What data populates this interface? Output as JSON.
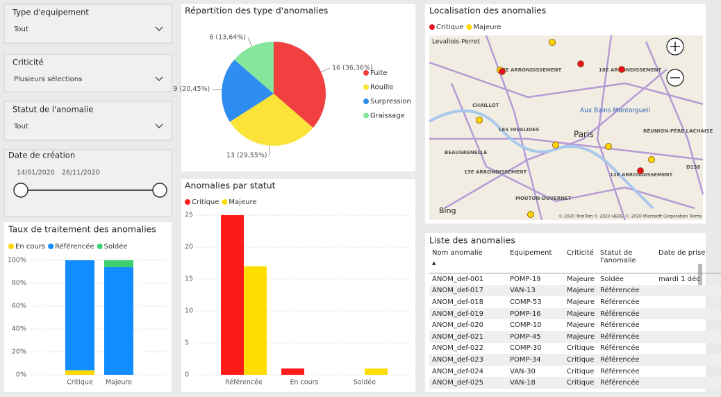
{
  "filters": [
    {
      "title": "Type d'equipement",
      "value": "Tout"
    },
    {
      "title": "Criticité",
      "value": "Plusieurs sélections"
    },
    {
      "title": "Statut de l'anomalie",
      "value": "Tout"
    }
  ],
  "date_filter": {
    "title": "Date de création",
    "start": "14/01/2020",
    "end": "26/11/2020"
  },
  "chart_data": [
    {
      "type": "bar",
      "stacked": true,
      "title": "Taux de traitement des anomalies",
      "categories": [
        "Critique",
        "Majeure"
      ],
      "series": [
        {
          "name": "En cours",
          "color": "#ffd700",
          "values": [
            4,
            0
          ]
        },
        {
          "name": "Référencée",
          "color": "#118dff",
          "values": [
            96,
            94
          ]
        },
        {
          "name": "Soldée",
          "color": "#3bd16f",
          "values": [
            0,
            6
          ]
        }
      ],
      "ylim": [
        0,
        100
      ],
      "yticks": [
        {
          "value": 0,
          "label": "0%"
        },
        {
          "value": 20,
          "label": "20%"
        },
        {
          "value": 40,
          "label": "40%"
        },
        {
          "value": 60,
          "label": "60%"
        },
        {
          "value": 80,
          "label": "80%"
        },
        {
          "value": 100,
          "label": "100%"
        }
      ],
      "grid": true
    },
    {
      "type": "pie",
      "title": "Répartition des type d'anomalies",
      "categories": [
        "Fuite",
        "Rouille",
        "Surpression",
        "Graissage"
      ],
      "values": [
        16,
        13,
        9,
        6
      ],
      "value_labels": [
        "16 (36,36%)",
        "13 (29,55%)",
        "9 (20,45%)",
        "6 (13,64%)"
      ],
      "colors": [
        "#f04040",
        "#fce33a",
        "#2f8cf0",
        "#86e69c"
      ]
    },
    {
      "type": "bar",
      "stacked": false,
      "title": "Anomalies par statut",
      "categories": [
        "Référencée",
        "En cours",
        "Soldée"
      ],
      "series": [
        {
          "name": "Critique",
          "color": "#ff1a1a",
          "values": [
            25,
            1,
            0
          ]
        },
        {
          "name": "Majeure",
          "color": "#ffdd00",
          "values": [
            17,
            0,
            1
          ]
        }
      ],
      "ylim": [
        0,
        26
      ],
      "yticks": [
        0,
        5,
        10,
        15,
        20,
        25
      ],
      "grid": true
    }
  ],
  "map": {
    "title": "Localisation des anomalies",
    "legend": [
      {
        "name": "Critique",
        "color": "#e81123"
      },
      {
        "name": "Majeure",
        "color": "#ffd700"
      }
    ],
    "labels": [
      "Levallois-Perret",
      "17E ARRONDISSEMENT",
      "18E ARRONDISSEMENT",
      "CHAILLOT",
      "Aux Bains Montorgueil",
      "LES INVALIDES",
      "Paris",
      "RÉUNION-PÈRE LACHAISE",
      "BEAUGRENELLE",
      "15E ARRONDISSEMENT",
      "12E ARRONDISSEMENT",
      "MOUTON-DUVERNET",
      "D158"
    ],
    "logo": "Bing",
    "attribution": "© 2020 TomTom © 2020 HERE, © 2020 Microsoft Corporation Terms"
  },
  "table": {
    "title": "Liste des anomalies",
    "columns": [
      "Nom anomalie",
      "Equipement",
      "Criticité",
      "Statut de l'anomalie",
      "Date de prise"
    ],
    "rows": [
      [
        "ANOM_def-001",
        "POMP-19",
        "Majeure",
        "Soldée",
        "mardi 1 déc"
      ],
      [
        "ANOM_def-017",
        "VAN-13",
        "Majeure",
        "Référencée",
        null
      ],
      [
        "ANOM_def-018",
        "COMP-53",
        "Majeure",
        "Référencée",
        null
      ],
      [
        "ANOM_def-019",
        "POMP-16",
        "Majeure",
        "Référencée",
        null
      ],
      [
        "ANOM_def-020",
        "COMP-10",
        "Majeure",
        "Référencée",
        null
      ],
      [
        "ANOM_def-021",
        "POMP-45",
        "Majeure",
        "Référencée",
        null
      ],
      [
        "ANOM_def-022",
        "COMP-30",
        "Critique",
        "Référencée",
        null
      ],
      [
        "ANOM_def-023",
        "POMP-34",
        "Critique",
        "Référencée",
        null
      ],
      [
        "ANOM_def-024",
        "VAN-30",
        "Critique",
        "Référencée",
        null
      ],
      [
        "ANOM_def-025",
        "VAN-18",
        "Critique",
        "Référencée",
        null
      ]
    ]
  }
}
